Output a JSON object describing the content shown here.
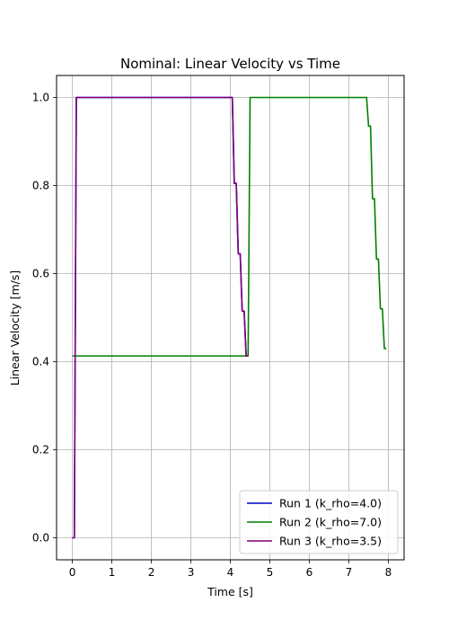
{
  "chart_data": {
    "type": "line",
    "title": "Nominal: Linear Velocity vs Time",
    "xlabel": "Time [s]",
    "ylabel": "Linear Velocity [m/s]",
    "xlim": [
      -0.4,
      8.4
    ],
    "ylim": [
      -0.05,
      1.05
    ],
    "xticks": [
      0,
      1,
      2,
      3,
      4,
      5,
      6,
      7,
      8
    ],
    "yticks": [
      0.0,
      0.2,
      0.4,
      0.6,
      0.8,
      1.0
    ],
    "xtick_labels": [
      "0",
      "1",
      "2",
      "3",
      "4",
      "5",
      "6",
      "7",
      "8"
    ],
    "ytick_labels": [
      "0.0",
      "0.2",
      "0.4",
      "0.6",
      "0.8",
      "1.0"
    ],
    "grid": true,
    "legend_position": "bottom-right",
    "series": [
      {
        "name": "Run 1 (k_rho=4.0)",
        "color": "#0000cc",
        "x": [
          0.0,
          0.05,
          0.1,
          4.05,
          4.1,
          4.15,
          4.2,
          4.25,
          4.3,
          4.35,
          4.4,
          4.45
        ],
        "y": [
          0.0,
          0.0,
          1.0,
          1.0,
          0.805,
          0.805,
          0.645,
          0.645,
          0.515,
          0.515,
          0.413,
          0.413
        ]
      },
      {
        "name": "Run 2 (k_rho=7.0)",
        "color": "#008000",
        "x": [
          0.0,
          4.45,
          4.5,
          7.45,
          7.5,
          7.55,
          7.6,
          7.65,
          7.7,
          7.75,
          7.8,
          7.85,
          7.9,
          7.95
        ],
        "y": [
          0.413,
          0.413,
          1.0,
          1.0,
          0.935,
          0.935,
          0.77,
          0.77,
          0.633,
          0.633,
          0.52,
          0.52,
          0.43,
          0.43
        ]
      },
      {
        "name": "Run 3 (k_rho=3.5)",
        "color": "#800080",
        "x": [
          0.0,
          0.05,
          0.1,
          4.05,
          4.1,
          4.15,
          4.2,
          4.25,
          4.3,
          4.35,
          4.4,
          4.45
        ],
        "y": [
          0.0,
          0.0,
          1.0,
          1.0,
          0.805,
          0.805,
          0.645,
          0.645,
          0.515,
          0.515,
          0.413,
          0.413
        ]
      }
    ]
  }
}
